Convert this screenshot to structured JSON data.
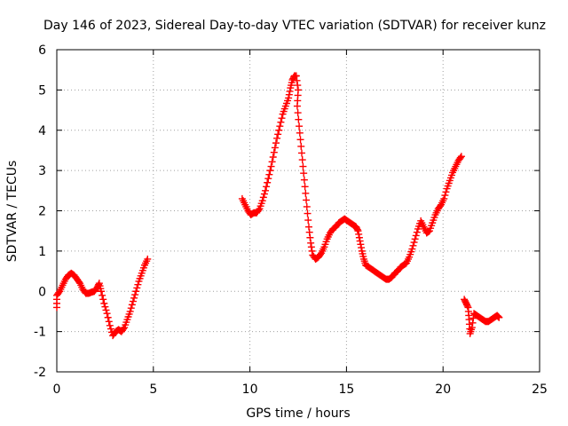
{
  "chart_data": {
    "type": "scatter",
    "title": "Day 146 of 2023, Sidereal Day-to-day VTEC variation (SDTVAR) for receiver kunz",
    "xlabel": "GPS time / hours",
    "ylabel": "SDTVAR / TECUs",
    "xlim": [
      0,
      25
    ],
    "ylim": [
      -2,
      6
    ],
    "xticks": [
      "0",
      "5",
      "10",
      "15",
      "20",
      "25"
    ],
    "yticks": [
      "-2",
      "-1",
      "0",
      "1",
      "2",
      "3",
      "4",
      "5",
      "6"
    ],
    "grid": true,
    "marker": "plus",
    "series_color": "#ff0000",
    "segments": [
      [
        [
          0.0,
          -0.4
        ],
        [
          0.0,
          -0.1
        ],
        [
          0.15,
          0.0
        ],
        [
          0.3,
          0.15
        ],
        [
          0.45,
          0.3
        ],
        [
          0.6,
          0.4
        ],
        [
          0.75,
          0.45
        ],
        [
          0.9,
          0.4
        ],
        [
          1.05,
          0.3
        ],
        [
          1.2,
          0.2
        ],
        [
          1.35,
          0.05
        ],
        [
          1.5,
          -0.05
        ],
        [
          1.65,
          -0.05
        ],
        [
          1.8,
          -0.02
        ],
        [
          1.95,
          0.0
        ],
        [
          2.1,
          0.1
        ],
        [
          2.2,
          0.2
        ],
        [
          2.3,
          0.0
        ],
        [
          2.45,
          -0.3
        ],
        [
          2.6,
          -0.55
        ],
        [
          2.75,
          -0.85
        ],
        [
          2.9,
          -1.1
        ],
        [
          3.05,
          -1.0
        ],
        [
          3.2,
          -0.95
        ],
        [
          3.35,
          -1.0
        ],
        [
          3.5,
          -0.9
        ],
        [
          3.65,
          -0.7
        ],
        [
          3.8,
          -0.5
        ],
        [
          3.95,
          -0.25
        ],
        [
          4.1,
          0.0
        ],
        [
          4.25,
          0.25
        ],
        [
          4.4,
          0.45
        ],
        [
          4.55,
          0.65
        ],
        [
          4.7,
          0.8
        ]
      ],
      [
        [
          9.6,
          2.3
        ],
        [
          9.75,
          2.15
        ],
        [
          9.9,
          2.0
        ],
        [
          10.05,
          1.9
        ],
        [
          10.2,
          1.95
        ],
        [
          10.35,
          1.95
        ],
        [
          10.5,
          2.05
        ],
        [
          10.65,
          2.25
        ],
        [
          10.8,
          2.5
        ],
        [
          10.95,
          2.8
        ],
        [
          11.1,
          3.1
        ],
        [
          11.25,
          3.45
        ],
        [
          11.4,
          3.8
        ],
        [
          11.55,
          4.1
        ],
        [
          11.7,
          4.4
        ],
        [
          11.85,
          4.6
        ],
        [
          12.0,
          4.8
        ],
        [
          12.1,
          5.05
        ],
        [
          12.2,
          5.25
        ],
        [
          12.3,
          5.35
        ],
        [
          12.4,
          5.35
        ],
        [
          12.5,
          5.0
        ],
        [
          12.45,
          4.6
        ],
        [
          12.55,
          4.1
        ],
        [
          12.65,
          3.6
        ],
        [
          12.75,
          3.1
        ],
        [
          12.85,
          2.6
        ],
        [
          12.95,
          2.1
        ],
        [
          13.05,
          1.6
        ],
        [
          13.15,
          1.2
        ],
        [
          13.25,
          0.9
        ],
        [
          13.4,
          0.8
        ],
        [
          13.55,
          0.85
        ],
        [
          13.7,
          0.95
        ],
        [
          13.85,
          1.1
        ],
        [
          14.0,
          1.3
        ],
        [
          14.15,
          1.45
        ],
        [
          14.3,
          1.55
        ],
        [
          14.45,
          1.6
        ],
        [
          14.6,
          1.7
        ],
        [
          14.75,
          1.75
        ],
        [
          14.9,
          1.8
        ],
        [
          15.05,
          1.75
        ],
        [
          15.2,
          1.7
        ],
        [
          15.35,
          1.65
        ],
        [
          15.5,
          1.6
        ],
        [
          15.6,
          1.5
        ],
        [
          15.7,
          1.25
        ],
        [
          15.8,
          1.0
        ],
        [
          15.9,
          0.8
        ],
        [
          16.0,
          0.65
        ],
        [
          16.15,
          0.6
        ],
        [
          16.3,
          0.55
        ],
        [
          16.45,
          0.5
        ],
        [
          16.6,
          0.45
        ],
        [
          16.75,
          0.4
        ],
        [
          16.9,
          0.35
        ],
        [
          17.05,
          0.3
        ],
        [
          17.2,
          0.3
        ],
        [
          17.35,
          0.35
        ],
        [
          17.5,
          0.45
        ],
        [
          17.65,
          0.5
        ],
        [
          17.8,
          0.6
        ],
        [
          17.95,
          0.65
        ],
        [
          18.1,
          0.7
        ],
        [
          18.25,
          0.85
        ],
        [
          18.4,
          1.05
        ],
        [
          18.55,
          1.3
        ],
        [
          18.7,
          1.55
        ],
        [
          18.85,
          1.75
        ],
        [
          19.0,
          1.6
        ],
        [
          19.15,
          1.45
        ],
        [
          19.3,
          1.5
        ],
        [
          19.45,
          1.7
        ],
        [
          19.6,
          1.9
        ],
        [
          19.75,
          2.05
        ],
        [
          19.9,
          2.15
        ],
        [
          20.05,
          2.3
        ],
        [
          20.2,
          2.55
        ],
        [
          20.35,
          2.75
        ],
        [
          20.5,
          2.95
        ],
        [
          20.65,
          3.1
        ],
        [
          20.8,
          3.25
        ],
        [
          20.95,
          3.35
        ]
      ],
      [
        [
          21.1,
          -0.2
        ],
        [
          21.2,
          -0.3
        ],
        [
          21.3,
          -0.4
        ],
        [
          21.35,
          -0.7
        ],
        [
          21.4,
          -1.05
        ],
        [
          21.5,
          -0.9
        ],
        [
          21.6,
          -0.55
        ],
        [
          21.75,
          -0.6
        ],
        [
          21.9,
          -0.65
        ],
        [
          22.05,
          -0.7
        ],
        [
          22.2,
          -0.75
        ],
        [
          22.35,
          -0.75
        ],
        [
          22.5,
          -0.7
        ],
        [
          22.65,
          -0.65
        ],
        [
          22.8,
          -0.6
        ],
        [
          22.9,
          -0.65
        ]
      ]
    ]
  }
}
